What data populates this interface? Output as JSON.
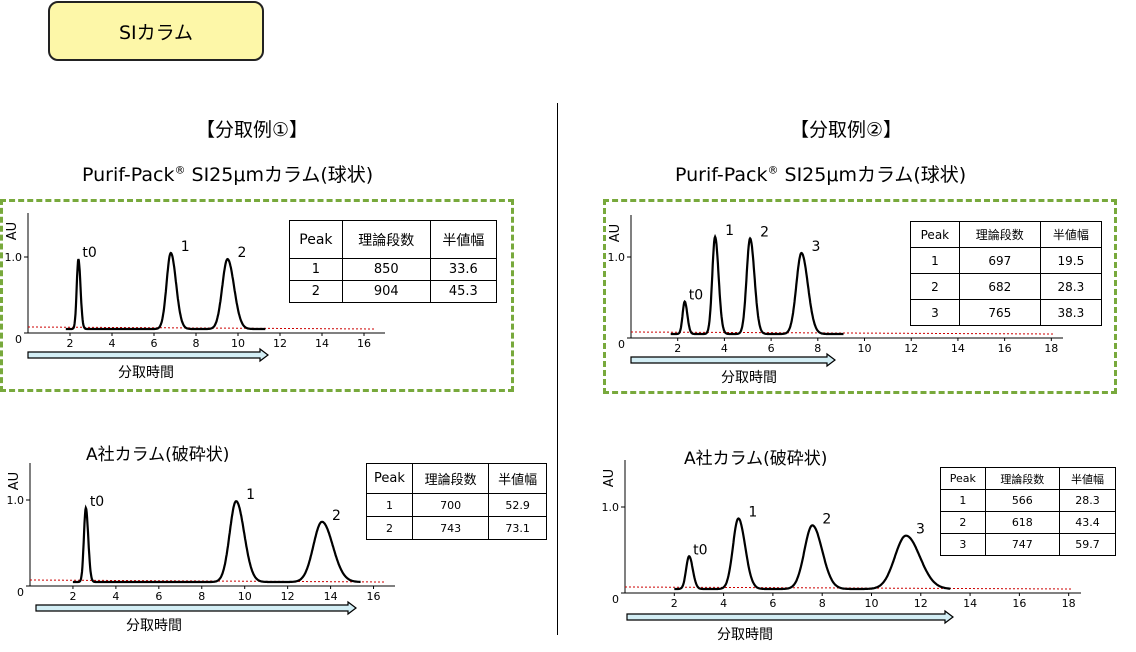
{
  "badge": "SIカラム",
  "left": {
    "example": "【分取例①】",
    "column_title": "Purif-Pack",
    "column_title_mark": "®",
    "column_title_rest": " SI25μmカラム(球状)",
    "vendor_title": "A社カラム(破砕状)"
  },
  "right": {
    "example": "【分取例②】",
    "column_title": "Purif-Pack",
    "column_title_mark": "®",
    "column_title_rest": " SI25μmカラム(球状)",
    "vendor_title": "A社カラム(破砕状)"
  },
  "colors": {
    "trace": "#000000",
    "baseline": "#cc0000",
    "arrow_fill": "#d3eef5",
    "green_border": "#78a93c",
    "badge_fill": "#fdf7a8"
  },
  "chart_data": [
    {
      "type": "line",
      "id": "c1",
      "ylabel": "AU",
      "yticks": [
        "1.0",
        "0"
      ],
      "xticks": [
        "2",
        "4",
        "6",
        "8",
        "10",
        "12",
        "14",
        "16"
      ],
      "xlim": [
        0,
        17
      ],
      "ylim": [
        0,
        1.2
      ],
      "arrow_label": "分取時間",
      "peaks": [
        {
          "label": "t0",
          "x": 2.4,
          "height": 0.92,
          "sigma": 0.08
        },
        {
          "label": "1",
          "x": 6.8,
          "height": 1.0,
          "sigma": 0.2
        },
        {
          "label": "2",
          "x": 9.5,
          "height": 0.92,
          "sigma": 0.25
        }
      ],
      "table": {
        "headers": [
          "Peak",
          "理論段数",
          "半値幅"
        ],
        "rows": [
          [
            "1",
            "850",
            "33.6"
          ],
          [
            "2",
            "904",
            "45.3"
          ]
        ]
      }
    },
    {
      "type": "line",
      "id": "c2",
      "ylabel": "AU",
      "yticks": [
        "1.0",
        "0"
      ],
      "xticks": [
        "2",
        "4",
        "6",
        "8",
        "10",
        "12",
        "14",
        "16",
        "18"
      ],
      "xlim": [
        0,
        18.5
      ],
      "ylim": [
        0,
        1.2
      ],
      "arrow_label": "分取時間",
      "peaks": [
        {
          "label": "t0",
          "x": 2.3,
          "height": 0.4,
          "sigma": 0.09
        },
        {
          "label": "1",
          "x": 3.6,
          "height": 1.2,
          "sigma": 0.12
        },
        {
          "label": "2",
          "x": 5.1,
          "height": 1.18,
          "sigma": 0.15
        },
        {
          "label": "3",
          "x": 7.3,
          "height": 1.0,
          "sigma": 0.22
        }
      ],
      "table": {
        "headers": [
          "Peak",
          "理論段数",
          "半値幅"
        ],
        "rows": [
          [
            "1",
            "697",
            "19.5"
          ],
          [
            "2",
            "682",
            "28.3"
          ],
          [
            "3",
            "765",
            "38.3"
          ]
        ]
      }
    },
    {
      "type": "line",
      "id": "c3",
      "ylabel": "AU",
      "yticks": [
        "1.0",
        "0"
      ],
      "xticks": [
        "2",
        "4",
        "6",
        "8",
        "10",
        "12",
        "14",
        "16"
      ],
      "xlim": [
        0,
        17
      ],
      "ylim": [
        0,
        1.2
      ],
      "arrow_label": "分取時間",
      "peaks": [
        {
          "label": "t0",
          "x": 2.6,
          "height": 0.86,
          "sigma": 0.09
        },
        {
          "label": "1",
          "x": 9.6,
          "height": 0.94,
          "sigma": 0.3
        },
        {
          "label": "2",
          "x": 13.6,
          "height": 0.7,
          "sigma": 0.4
        }
      ],
      "table": {
        "headers": [
          "Peak",
          "理論段数",
          "半値幅"
        ],
        "rows": [
          [
            "1",
            "700",
            "52.9"
          ],
          [
            "2",
            "743",
            "73.1"
          ]
        ]
      }
    },
    {
      "type": "line",
      "id": "c4",
      "ylabel": "AU",
      "yticks": [
        "1.0",
        "0"
      ],
      "xticks": [
        "2",
        "4",
        "6",
        "8",
        "10",
        "12",
        "14",
        "16",
        "18"
      ],
      "xlim": [
        0,
        18.5
      ],
      "ylim": [
        0,
        1.2
      ],
      "arrow_label": "分取時間",
      "peaks": [
        {
          "label": "t0",
          "x": 2.6,
          "height": 0.38,
          "sigma": 0.12
        },
        {
          "label": "1",
          "x": 4.6,
          "height": 0.82,
          "sigma": 0.22
        },
        {
          "label": "2",
          "x": 7.6,
          "height": 0.74,
          "sigma": 0.32
        },
        {
          "label": "3",
          "x": 11.4,
          "height": 0.62,
          "sigma": 0.45
        }
      ],
      "table": {
        "headers": [
          "Peak",
          "理論段数",
          "半値幅"
        ],
        "rows": [
          [
            "1",
            "566",
            "28.3"
          ],
          [
            "2",
            "618",
            "43.4"
          ],
          [
            "3",
            "747",
            "59.7"
          ]
        ]
      }
    }
  ]
}
